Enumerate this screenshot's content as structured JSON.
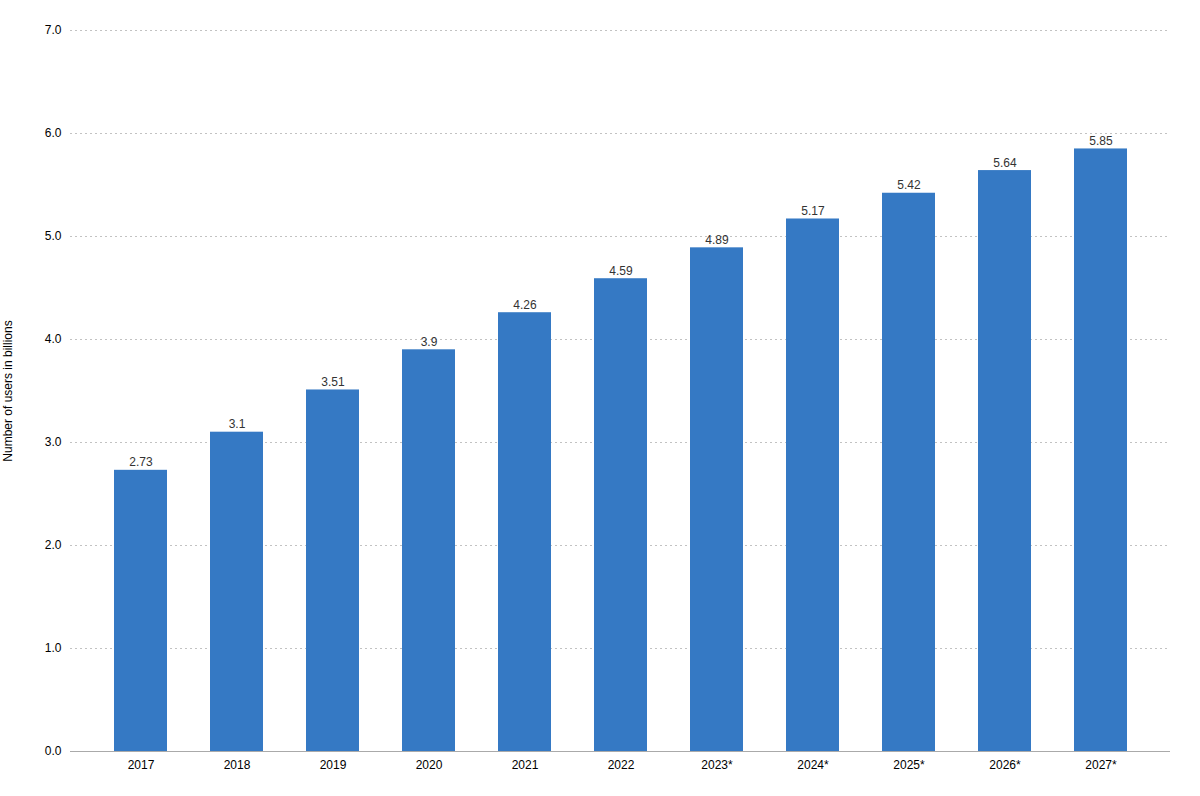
{
  "chart_data": {
    "type": "bar",
    "categories": [
      "2017",
      "2018",
      "2019",
      "2020",
      "2021",
      "2022",
      "2023*",
      "2024*",
      "2025*",
      "2026*",
      "2027*"
    ],
    "values": [
      2.73,
      3.1,
      3.51,
      3.9,
      4.26,
      4.59,
      4.89,
      5.17,
      5.42,
      5.64,
      5.85
    ],
    "color": "#3579C4",
    "ylabel": "Number of users in billions",
    "ylim": [
      0,
      7
    ],
    "yticks": [
      0,
      1,
      2,
      3,
      4,
      5,
      6,
      7
    ],
    "grid": true,
    "data_labels": true
  }
}
